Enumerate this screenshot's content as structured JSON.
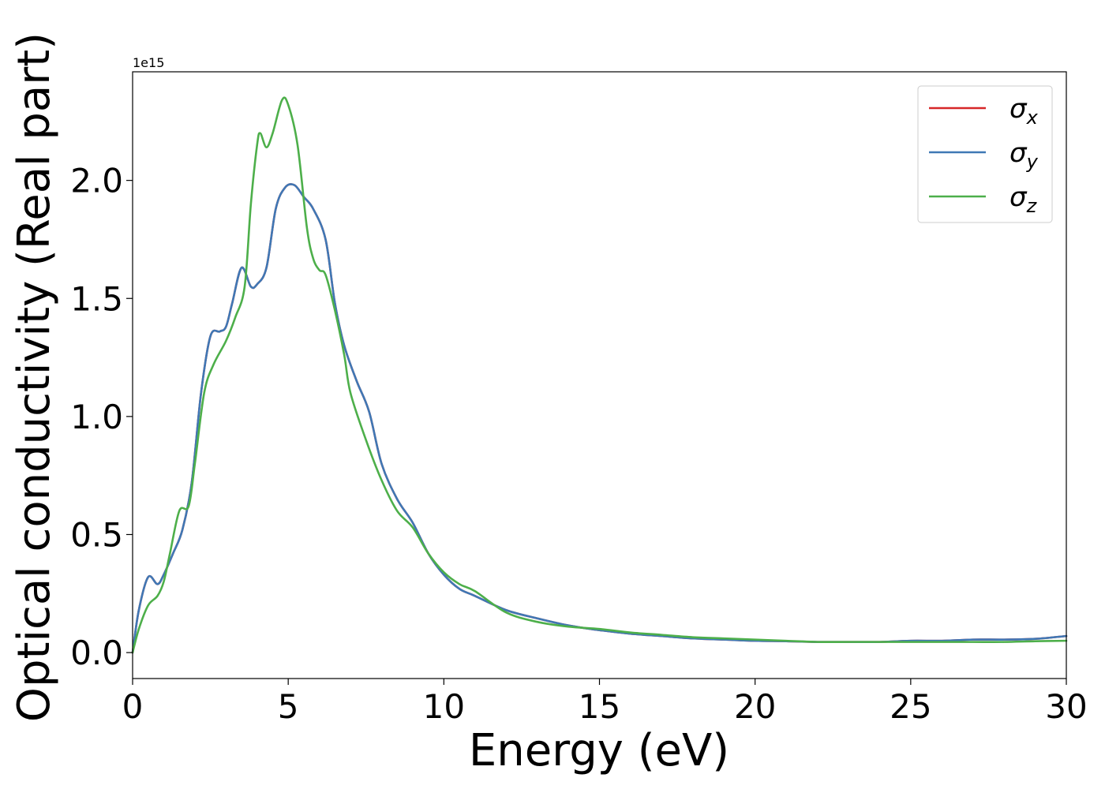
{
  "chart_data": {
    "type": "line",
    "xlabel": "Energy (eV)",
    "ylabel": "Optical conductivity (Real part)",
    "y_offset_label": "1e15",
    "xlim": [
      0,
      30
    ],
    "ylim": [
      -0.11,
      2.46
    ],
    "xticks": [
      0,
      5,
      10,
      15,
      20,
      25,
      30
    ],
    "xtick_labels": [
      "0",
      "5",
      "10",
      "15",
      "20",
      "25",
      "30"
    ],
    "yticks": [
      0.0,
      0.5,
      1.0,
      1.5,
      2.0
    ],
    "ytick_labels": [
      "0.0",
      "0.5",
      "1.0",
      "1.5",
      "2.0"
    ],
    "grid": false,
    "legend_position": "top-right",
    "series": [
      {
        "name": "σx",
        "symbol": "σ",
        "sub": "x",
        "color": "#d62728",
        "x": [
          0,
          0.2,
          0.5,
          0.8,
          1.0,
          1.3,
          1.6,
          1.9,
          2.2,
          2.5,
          2.8,
          3.0,
          3.2,
          3.5,
          3.8,
          4.0,
          4.3,
          4.6,
          4.9,
          5.2,
          5.5,
          5.8,
          6.2,
          6.5,
          6.8,
          7.2,
          7.6,
          8.0,
          8.5,
          9.0,
          9.5,
          10.0,
          10.5,
          11.0,
          12.0,
          13.0,
          14.0,
          15.0,
          16.0,
          17.0,
          18.0,
          19.0,
          20.0,
          21.0,
          22.0,
          23.0,
          24.0,
          25.0,
          26.0,
          27.0,
          28.0,
          29.0,
          30.0
        ],
        "values": [
          0.0,
          0.18,
          0.32,
          0.29,
          0.33,
          0.42,
          0.52,
          0.72,
          1.1,
          1.34,
          1.36,
          1.38,
          1.48,
          1.63,
          1.55,
          1.56,
          1.63,
          1.88,
          1.97,
          1.98,
          1.93,
          1.88,
          1.75,
          1.48,
          1.3,
          1.15,
          1.02,
          0.8,
          0.65,
          0.55,
          0.42,
          0.33,
          0.27,
          0.24,
          0.18,
          0.145,
          0.115,
          0.095,
          0.08,
          0.07,
          0.06,
          0.055,
          0.05,
          0.048,
          0.045,
          0.045,
          0.045,
          0.05,
          0.05,
          0.055,
          0.055,
          0.058,
          0.07
        ]
      },
      {
        "name": "σy",
        "symbol": "σ",
        "sub": "y",
        "color": "#3f78b5",
        "x": [
          0,
          0.2,
          0.5,
          0.8,
          1.0,
          1.3,
          1.6,
          1.9,
          2.2,
          2.5,
          2.8,
          3.0,
          3.2,
          3.5,
          3.8,
          4.0,
          4.3,
          4.6,
          4.9,
          5.2,
          5.5,
          5.8,
          6.2,
          6.5,
          6.8,
          7.2,
          7.6,
          8.0,
          8.5,
          9.0,
          9.5,
          10.0,
          10.5,
          11.0,
          12.0,
          13.0,
          14.0,
          15.0,
          16.0,
          17.0,
          18.0,
          19.0,
          20.0,
          21.0,
          22.0,
          23.0,
          24.0,
          25.0,
          26.0,
          27.0,
          28.0,
          29.0,
          30.0
        ],
        "values": [
          0.0,
          0.18,
          0.32,
          0.29,
          0.33,
          0.42,
          0.52,
          0.72,
          1.1,
          1.34,
          1.36,
          1.38,
          1.48,
          1.63,
          1.55,
          1.56,
          1.63,
          1.88,
          1.97,
          1.98,
          1.93,
          1.88,
          1.75,
          1.48,
          1.3,
          1.15,
          1.02,
          0.8,
          0.65,
          0.55,
          0.42,
          0.33,
          0.27,
          0.24,
          0.18,
          0.145,
          0.115,
          0.095,
          0.08,
          0.07,
          0.06,
          0.055,
          0.05,
          0.048,
          0.045,
          0.045,
          0.045,
          0.05,
          0.05,
          0.055,
          0.055,
          0.058,
          0.07
        ]
      },
      {
        "name": "σz",
        "symbol": "σ",
        "sub": "z",
        "color": "#4daf4a",
        "x": [
          0,
          0.2,
          0.5,
          0.8,
          1.0,
          1.2,
          1.5,
          1.8,
          2.0,
          2.3,
          2.6,
          3.0,
          3.3,
          3.6,
          3.8,
          4.0,
          4.1,
          4.3,
          4.5,
          4.8,
          5.0,
          5.3,
          5.6,
          5.8,
          6.0,
          6.2,
          6.5,
          6.8,
          7.0,
          7.5,
          8.0,
          8.5,
          9.0,
          9.5,
          10.0,
          10.5,
          11.0,
          12.0,
          13.0,
          14.0,
          15.0,
          16.0,
          17.0,
          18.0,
          19.0,
          20.0,
          21.0,
          22.0,
          23.0,
          24.0,
          25.0,
          26.0,
          27.0,
          28.0,
          29.0,
          30.0
        ],
        "values": [
          0.0,
          0.1,
          0.2,
          0.24,
          0.3,
          0.42,
          0.6,
          0.62,
          0.8,
          1.1,
          1.22,
          1.32,
          1.42,
          1.55,
          1.9,
          2.15,
          2.2,
          2.14,
          2.2,
          2.34,
          2.32,
          2.15,
          1.8,
          1.67,
          1.62,
          1.6,
          1.45,
          1.26,
          1.1,
          0.9,
          0.73,
          0.6,
          0.53,
          0.42,
          0.34,
          0.29,
          0.26,
          0.17,
          0.13,
          0.11,
          0.1,
          0.085,
          0.075,
          0.065,
          0.06,
          0.055,
          0.05,
          0.045,
          0.045,
          0.045,
          0.045,
          0.045,
          0.045,
          0.045,
          0.048,
          0.05
        ]
      }
    ]
  }
}
